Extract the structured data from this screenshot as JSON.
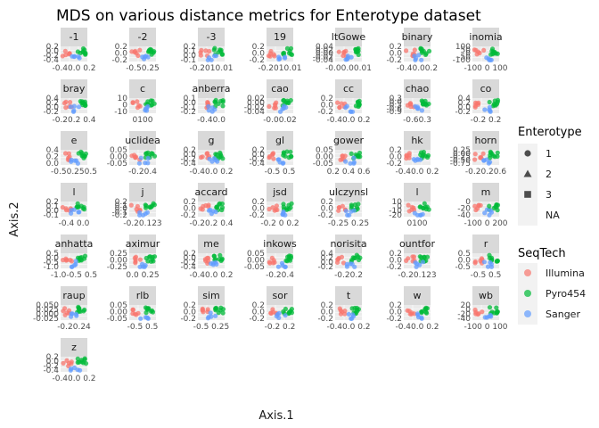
{
  "chart_data": {
    "type": "scatter",
    "title": "MDS on various distance metrics for Enterotype dataset",
    "xlabel": "Axis.1",
    "ylabel": "Axis.2",
    "facet_grid": {
      "columns": 7,
      "rows": 7
    },
    "panels": [
      {
        "label": "-1",
        "ytick_text": [
          "0.2",
          "0.0",
          "-0.2",
          "-0.4"
        ],
        "xtick_text": "-0.40.0 0.2"
      },
      {
        "label": "-2",
        "ytick_text": [
          "0.2",
          "0.0",
          "-0.2"
        ],
        "xtick_text": "-0.50.25"
      },
      {
        "label": "-3",
        "ytick_text": [
          "0.2",
          "0.1",
          "0.0",
          "-0.1"
        ],
        "xtick_text": "-0.2010.01"
      },
      {
        "label": "19",
        "ytick_text": [
          "0.2",
          "0.0",
          "-0.2"
        ],
        "xtick_text": "-0.2010.01"
      },
      {
        "label": "ltGowe",
        "ytick_text": [
          "0.04",
          "0.02",
          "0.00",
          "-0.02",
          "-0.04"
        ],
        "xtick_text": "-0.00.00.01"
      },
      {
        "label": "binary",
        "ytick_text": [
          "0.2",
          "0.0",
          "-0.2"
        ],
        "xtick_text": "-0.40.00.2"
      },
      {
        "label": "inomia",
        "ytick_text": [
          "100",
          "50",
          "0",
          "-50",
          "-100"
        ],
        "xtick_text": "-100 0 100"
      },
      {
        "label": "bray",
        "ytick_text": [
          "0.4",
          "0.2",
          "0.0",
          "-0.2"
        ],
        "xtick_text": "-0.20.2 0.4"
      },
      {
        "label": "c",
        "ytick_text": [
          "10",
          "0",
          "-10"
        ],
        "xtick_text": "0100"
      },
      {
        "label": "anberra",
        "ytick_text": [
          "0.1",
          "0.0",
          "-0.1",
          "-0.2"
        ],
        "xtick_text": "-0.40.0"
      },
      {
        "label": "cao",
        "ytick_text": [
          "0.02",
          "0.00",
          "-0.02",
          "-0.04"
        ],
        "xtick_text": "-0.00.02"
      },
      {
        "label": "cc",
        "ytick_text": [
          "0.2",
          "0.0",
          "-0.2"
        ],
        "xtick_text": "-0.40.0 0.2"
      },
      {
        "label": "chao",
        "ytick_text": [
          "0.3",
          "0.0",
          "-0.3",
          "-0.6",
          "-0.9"
        ],
        "xtick_text": "-0.60.3"
      },
      {
        "label": "co",
        "ytick_text": [
          "0.4",
          "0.2",
          "0.0",
          "-0.2"
        ],
        "xtick_text": "-0.2 0.2"
      },
      {
        "label": "e",
        "ytick_text": [
          "0.4",
          "0.2",
          "0.0"
        ],
        "xtick_text": "-0.50.250.5"
      },
      {
        "label": "uclidea",
        "ytick_text": [
          "0.05",
          "0.00",
          "-0.05"
        ],
        "xtick_text": "-0.20.4"
      },
      {
        "label": "g",
        "ytick_text": [
          "0.2",
          "0.0",
          "-0.2",
          "-0.4"
        ],
        "xtick_text": "-0.40.0 0.2"
      },
      {
        "label": "gl",
        "ytick_text": [
          "0.2",
          "0.0",
          "-0.2",
          "-0.4"
        ],
        "xtick_text": "-0.5 0.5"
      },
      {
        "label": "gower",
        "ytick_text": [
          "0.05",
          "0.00",
          "-0.05"
        ],
        "xtick_text": "0.2 0.4 0.6"
      },
      {
        "label": "hk",
        "ytick_text": [
          "0.2",
          "0.0",
          "-0.2"
        ],
        "xtick_text": "-0.40.0 0.2"
      },
      {
        "label": "horn",
        "ytick_text": [
          "0.25",
          "0.00",
          "-0.25",
          "-0.50",
          "-0.75"
        ],
        "xtick_text": "-0.20.20.6"
      },
      {
        "label": "l",
        "ytick_text": [
          "0.2",
          "0.1",
          "0.0",
          "-0.1"
        ],
        "xtick_text": "-0.4 0.0"
      },
      {
        "label": "j",
        "ytick_text": [
          "0.2",
          "0.1",
          "0.0",
          "-0.1",
          "-0.2"
        ],
        "xtick_text": "-0.20.123"
      },
      {
        "label": "accard",
        "ytick_text": [
          "0.2",
          "0.0",
          "-0.2"
        ],
        "xtick_text": "-0.20.2 0.4"
      },
      {
        "label": "jsd",
        "ytick_text": [
          "0.2",
          "0.0",
          "-0.2"
        ],
        "xtick_text": "-0.2 0 0.2"
      },
      {
        "label": "ulczynsl",
        "ytick_text": [
          "0.2",
          "0.0",
          "-0.2"
        ],
        "xtick_text": "-0.25 0.25"
      },
      {
        "label": "l",
        "ytick_text": [
          "10",
          "0",
          "-10",
          "-20"
        ],
        "xtick_text": "0100"
      },
      {
        "label": "m",
        "ytick_text": [
          "0",
          "-20",
          "-40"
        ],
        "xtick_text": "-100 0 200"
      },
      {
        "label": "anhatta",
        "ytick_text": [
          "0.5",
          "0.0",
          "-0.5",
          "-1.0"
        ],
        "xtick_text": "-1.0-0.5 0.5"
      },
      {
        "label": "aximur",
        "ytick_text": [
          "0.25",
          "0.00",
          "-0.25"
        ],
        "xtick_text": "0.0 0.25"
      },
      {
        "label": "me",
        "ytick_text": [
          "0.2",
          "0.0",
          "-0.2",
          "-0.4"
        ],
        "xtick_text": "-0.40.0 0.2"
      },
      {
        "label": "inkows",
        "ytick_text": [
          "0.05",
          "0.00",
          "-0.05"
        ],
        "xtick_text": "-0.20.4"
      },
      {
        "label": "norisita",
        "ytick_text": [
          "0.4",
          "0.2",
          "0.0",
          "-0.2"
        ],
        "xtick_text": "-0.20.2"
      },
      {
        "label": "ountfor",
        "ytick_text": [
          "0.2",
          "0.0",
          "-0.2"
        ],
        "xtick_text": "-0.20.123"
      },
      {
        "label": "r",
        "ytick_text": [
          "0.5",
          "0.0",
          "-0.5"
        ],
        "xtick_text": "-0.5 0.5"
      },
      {
        "label": "raup",
        "ytick_text": [
          "0.050",
          "0.025",
          "0.000",
          "-0.025"
        ],
        "xtick_text": "-0.20.24"
      },
      {
        "label": "rlb",
        "ytick_text": [
          "0.05",
          "0.00",
          "-0.05"
        ],
        "xtick_text": "-0.5 0.5"
      },
      {
        "label": "sim",
        "ytick_text": [
          "0.2",
          "0.0",
          "-0.2"
        ],
        "xtick_text": "-0.5 0.25"
      },
      {
        "label": "sor",
        "ytick_text": [
          "0.2",
          "0.0",
          "-0.2"
        ],
        "xtick_text": "-0.2 0.2"
      },
      {
        "label": "t",
        "ytick_text": [
          "0.2",
          "0.0",
          "-0.2"
        ],
        "xtick_text": "-0.40.0 0.2"
      },
      {
        "label": "w",
        "ytick_text": [
          "0.2",
          "0.0",
          "-0.2"
        ],
        "xtick_text": "-0.40.0 0.2"
      },
      {
        "label": "wb",
        "ytick_text": [
          "20",
          "0",
          "-20",
          "-40"
        ],
        "xtick_text": "-100 0 100"
      },
      {
        "label": "z",
        "ytick_text": [
          "0.2",
          "0.0",
          "-0.2",
          "-0.4"
        ],
        "xtick_text": "-0.40.0 0.2"
      }
    ],
    "legend": {
      "placement": "right",
      "shape": {
        "title": "Enterotype",
        "entries": [
          "1",
          "2",
          "3",
          "NA"
        ],
        "symbols": [
          "circle",
          "triangle",
          "square",
          "none"
        ]
      },
      "color": {
        "title": "SeqTech",
        "entries": [
          "Illumina",
          "Pyro454",
          "Sanger"
        ],
        "colors": [
          "#F8766D",
          "#00BA38",
          "#619CFF"
        ]
      }
    },
    "panel_background": "#EBEBEB",
    "strip_background": "#D9D9D9",
    "grid": true
  }
}
